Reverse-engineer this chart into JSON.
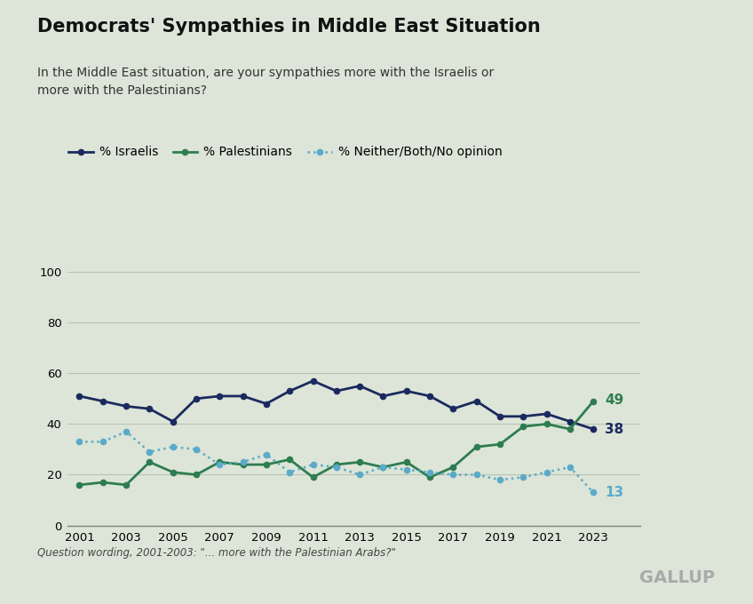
{
  "title": "Democrats' Sympathies in Middle East Situation",
  "subtitle": "In the Middle East situation, are your sympathies more with the Israelis or\nmore with the Palestinians?",
  "footnote": "Question wording, 2001-2003: \"... more with the Palestinian Arabs?\"",
  "source": "GALLUP",
  "background_color": "#dde5d8",
  "years": [
    2001,
    2002,
    2003,
    2004,
    2005,
    2006,
    2007,
    2008,
    2009,
    2010,
    2011,
    2012,
    2013,
    2014,
    2015,
    2016,
    2017,
    2018,
    2019,
    2020,
    2021,
    2022,
    2023
  ],
  "israelis": [
    51,
    49,
    47,
    46,
    41,
    50,
    51,
    51,
    48,
    53,
    57,
    53,
    55,
    51,
    53,
    51,
    46,
    49,
    43,
    43,
    44,
    41,
    38
  ],
  "palestinians": [
    16,
    17,
    16,
    25,
    21,
    20,
    25,
    24,
    24,
    26,
    19,
    24,
    25,
    23,
    25,
    19,
    23,
    31,
    32,
    39,
    40,
    38,
    49
  ],
  "neither": [
    33,
    33,
    37,
    29,
    31,
    30,
    24,
    25,
    28,
    21,
    24,
    23,
    20,
    23,
    22,
    21,
    20,
    20,
    18,
    19,
    21,
    23,
    13
  ],
  "israelis_color": "#1b2a5e",
  "palestinians_color": "#2e7d50",
  "neither_color": "#5aaac8",
  "ylim": [
    0,
    100
  ],
  "yticks": [
    0,
    20,
    40,
    60,
    80,
    100
  ],
  "xticks": [
    2001,
    2003,
    2005,
    2007,
    2009,
    2011,
    2013,
    2015,
    2017,
    2019,
    2021,
    2023
  ],
  "legend_labels": [
    "% Israelis",
    "% Palestinians",
    "% Neither/Both/No opinion"
  ],
  "end_labels": {
    "israelis": 38,
    "palestinians": 49,
    "neither": 13
  }
}
